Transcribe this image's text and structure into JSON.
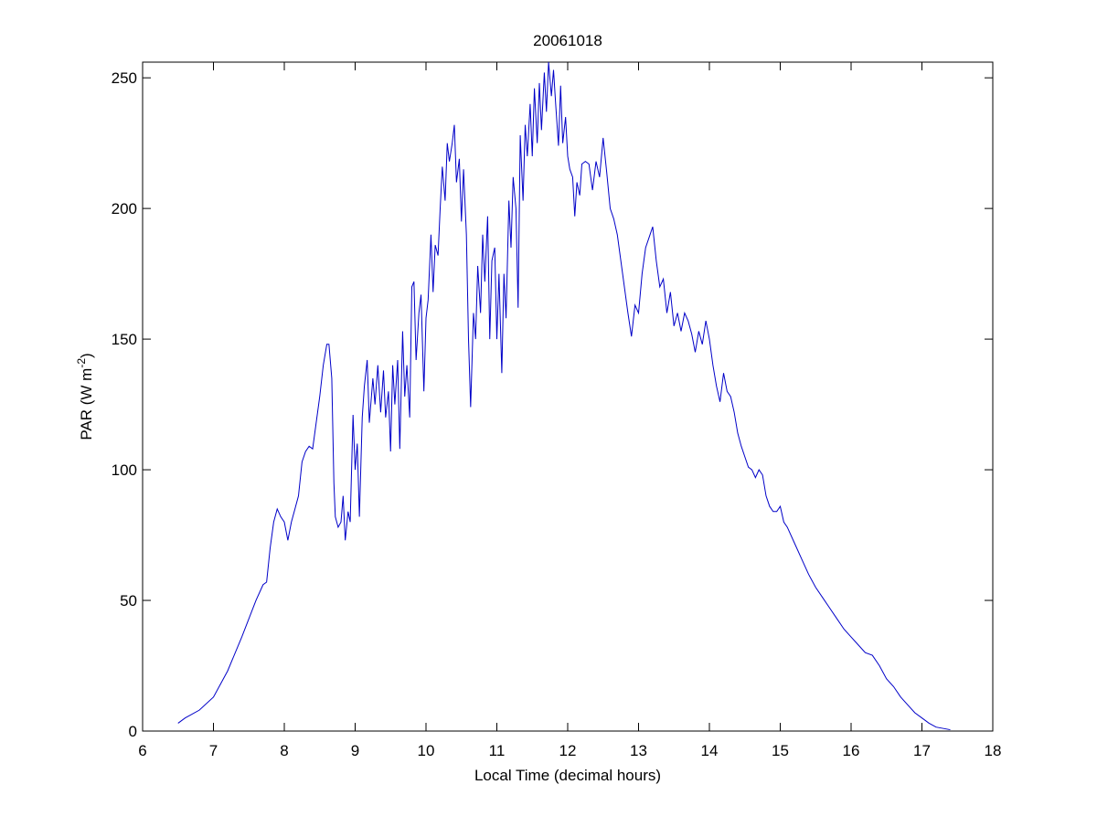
{
  "chart_data": {
    "type": "line",
    "title": "20061018",
    "xlabel": "Local Time (decimal hours)",
    "ylabel": [
      "PAR (W m",
      "-2",
      ")"
    ],
    "color": "#0000c8",
    "xlim": [
      6,
      18
    ],
    "xticks": [
      6,
      7,
      8,
      9,
      10,
      11,
      12,
      13,
      14,
      15,
      16,
      17,
      18
    ],
    "ylim": [
      0,
      256
    ],
    "yticks": [
      0,
      50,
      100,
      150,
      200,
      250
    ],
    "x": [
      6.5,
      6.6,
      6.8,
      7.0,
      7.2,
      7.4,
      7.6,
      7.7,
      7.75,
      7.8,
      7.85,
      7.9,
      7.95,
      8.0,
      8.05,
      8.1,
      8.15,
      8.2,
      8.25,
      8.3,
      8.35,
      8.4,
      8.45,
      8.5,
      8.55,
      8.6,
      8.63,
      8.67,
      8.7,
      8.72,
      8.76,
      8.8,
      8.83,
      8.86,
      8.9,
      8.93,
      8.97,
      9.0,
      9.03,
      9.06,
      9.1,
      9.13,
      9.17,
      9.2,
      9.25,
      9.28,
      9.32,
      9.36,
      9.4,
      9.43,
      9.47,
      9.5,
      9.53,
      9.56,
      9.6,
      9.63,
      9.67,
      9.7,
      9.73,
      9.77,
      9.8,
      9.83,
      9.86,
      9.9,
      9.93,
      9.97,
      10.0,
      10.03,
      10.07,
      10.1,
      10.13,
      10.17,
      10.2,
      10.23,
      10.27,
      10.3,
      10.33,
      10.37,
      10.4,
      10.43,
      10.47,
      10.5,
      10.53,
      10.57,
      10.6,
      10.63,
      10.67,
      10.7,
      10.73,
      10.77,
      10.8,
      10.83,
      10.87,
      10.9,
      10.93,
      10.97,
      11.0,
      11.03,
      11.07,
      11.1,
      11.13,
      11.17,
      11.2,
      11.23,
      11.27,
      11.3,
      11.33,
      11.37,
      11.4,
      11.43,
      11.47,
      11.5,
      11.53,
      11.57,
      11.6,
      11.63,
      11.67,
      11.7,
      11.73,
      11.77,
      11.8,
      11.83,
      11.87,
      11.9,
      11.93,
      11.97,
      12.0,
      12.03,
      12.07,
      12.1,
      12.13,
      12.17,
      12.2,
      12.25,
      12.3,
      12.35,
      12.4,
      12.45,
      12.5,
      12.55,
      12.6,
      12.65,
      12.7,
      12.75,
      12.8,
      12.85,
      12.9,
      12.95,
      13.0,
      13.05,
      13.1,
      13.15,
      13.2,
      13.25,
      13.3,
      13.35,
      13.4,
      13.45,
      13.5,
      13.55,
      13.6,
      13.65,
      13.7,
      13.75,
      13.8,
      13.85,
      13.9,
      13.95,
      14.0,
      14.05,
      14.1,
      14.15,
      14.2,
      14.25,
      14.3,
      14.35,
      14.4,
      14.45,
      14.5,
      14.55,
      14.6,
      14.65,
      14.7,
      14.75,
      14.8,
      14.85,
      14.9,
      14.95,
      15.0,
      15.05,
      15.1,
      15.2,
      15.3,
      15.4,
      15.5,
      15.6,
      15.7,
      15.8,
      15.9,
      16.0,
      16.1,
      16.2,
      16.3,
      16.4,
      16.5,
      16.6,
      16.7,
      16.8,
      16.9,
      17.0,
      17.1,
      17.2,
      17.4
    ],
    "values": [
      3,
      5,
      8,
      13,
      23,
      36,
      50,
      56,
      57,
      70,
      80,
      85,
      82,
      80,
      73,
      80,
      85,
      90,
      103,
      107,
      109,
      108,
      118,
      128,
      140,
      148,
      148,
      135,
      95,
      82,
      78,
      80,
      90,
      73,
      84,
      80,
      121,
      100,
      110,
      82,
      120,
      132,
      142,
      118,
      135,
      125,
      140,
      122,
      138,
      120,
      130,
      107,
      140,
      125,
      142,
      108,
      153,
      128,
      140,
      120,
      170,
      172,
      142,
      160,
      167,
      130,
      158,
      165,
      190,
      168,
      186,
      182,
      200,
      216,
      203,
      225,
      218,
      225,
      232,
      210,
      219,
      195,
      215,
      190,
      150,
      124,
      160,
      150,
      178,
      160,
      190,
      172,
      197,
      150,
      180,
      185,
      150,
      175,
      137,
      175,
      158,
      203,
      185,
      212,
      200,
      162,
      228,
      203,
      232,
      220,
      240,
      220,
      246,
      225,
      248,
      230,
      252,
      237,
      256,
      243,
      253,
      240,
      224,
      247,
      225,
      235,
      220,
      215,
      212,
      197,
      210,
      205,
      217,
      218,
      217,
      207,
      218,
      212,
      227,
      214,
      200,
      196,
      190,
      180,
      170,
      160,
      151,
      163,
      160,
      175,
      185,
      189,
      193,
      180,
      170,
      173,
      160,
      168,
      155,
      160,
      153,
      160,
      157,
      152,
      145,
      153,
      148,
      157,
      150,
      140,
      132,
      126,
      137,
      130,
      128,
      122,
      114,
      109,
      105,
      101,
      100,
      97,
      100,
      98,
      90,
      86,
      84,
      84,
      86,
      80,
      78,
      72,
      66,
      60,
      55,
      51,
      47,
      43,
      39,
      36,
      33,
      30,
      29,
      25,
      20,
      17,
      13,
      10,
      7,
      5,
      3,
      1.5,
      0.5
    ]
  }
}
